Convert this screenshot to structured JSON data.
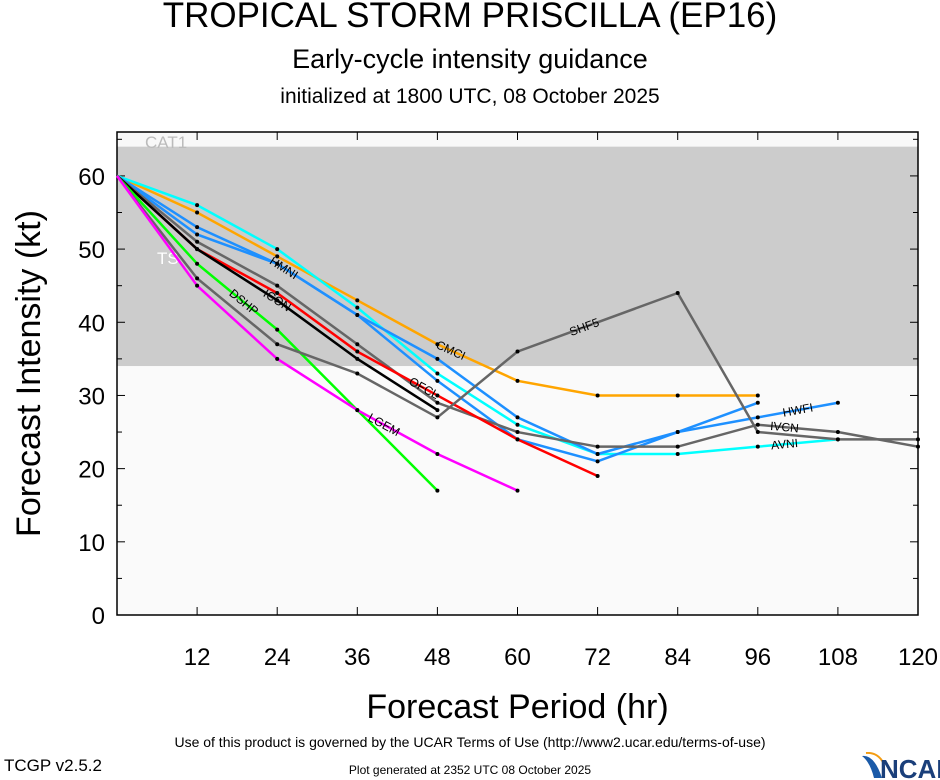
{
  "header": {
    "title": "TROPICAL STORM PRISCILLA (EP16)",
    "subtitle": "Early-cycle intensity guidance",
    "init": "initialized at 1800 UTC, 08 October 2025"
  },
  "footer": {
    "terms": "Use of this product is governed by the UCAR Terms of Use (http://www2.ucar.edu/terms-of-use)",
    "generated": "Plot generated at 2352 UTC   08 October 2025",
    "version": "TCGP v2.5.2",
    "logo": "NCAR"
  },
  "chart_data": {
    "type": "line",
    "xlabel": "Forecast Period (hr)",
    "ylabel": "Forecast Intensity (kt)",
    "xlim": [
      0,
      120
    ],
    "ylim": [
      0,
      66
    ],
    "xticks": [
      12,
      24,
      36,
      48,
      60,
      72,
      84,
      96,
      108,
      120
    ],
    "yticks": [
      0,
      10,
      20,
      30,
      40,
      50,
      60
    ],
    "bands": [
      {
        "label": "CAT1",
        "from": 64,
        "to": 66,
        "color": "#f8f8f8"
      },
      {
        "label": "TS",
        "from": 34,
        "to": 64,
        "color": "#cccccc"
      },
      {
        "label": "",
        "from": 0,
        "to": 34,
        "color": "#fafafa"
      }
    ],
    "series": [
      {
        "name": "CMCI",
        "color": "#ffa500",
        "x": [
          0,
          12,
          24,
          36,
          48,
          60,
          72,
          84,
          96
        ],
        "y": [
          60,
          55,
          49,
          43,
          37,
          32,
          30,
          30,
          30
        ],
        "label_x": 50
      },
      {
        "name": "AVNI",
        "color": "#00ffff",
        "x": [
          0,
          12,
          24,
          36,
          48,
          60,
          72,
          84,
          96,
          108
        ],
        "y": [
          60,
          56,
          50,
          42,
          33,
          26,
          22,
          22,
          23,
          24
        ],
        "label_x": 100
      },
      {
        "name": "HWFI",
        "color": "#1e90ff",
        "x": [
          0,
          12,
          24,
          36,
          48,
          60,
          72,
          84,
          96,
          108
        ],
        "y": [
          60,
          52,
          48,
          41,
          35,
          27,
          22,
          25,
          27,
          29
        ],
        "label_x": 102
      },
      {
        "name": "HMNI",
        "color": "#1e90ff",
        "x": [
          0,
          12,
          24,
          36,
          48,
          60,
          72,
          84,
          96
        ],
        "y": [
          60,
          53,
          48,
          41,
          32,
          24,
          21,
          25,
          29
        ],
        "label_x": 25
      },
      {
        "name": "IVCN",
        "color": "#666666",
        "x": [
          0,
          12,
          24,
          36,
          48,
          60,
          72,
          84,
          96,
          108,
          120
        ],
        "y": [
          60,
          51,
          45,
          37,
          29,
          25,
          23,
          23,
          26,
          25,
          23
        ],
        "label_x": 100
      },
      {
        "name": "OFCL",
        "color": "#ff0000",
        "x": [
          0,
          12,
          24,
          36,
          48,
          60,
          72
        ],
        "y": [
          60,
          50,
          44,
          36,
          30,
          24,
          19
        ],
        "label_x": 46
      },
      {
        "name": "ICON",
        "color": "#000000",
        "x": [
          0,
          12,
          24,
          36,
          48
        ],
        "y": [
          60,
          50,
          43,
          35,
          28
        ],
        "label_x": 24
      },
      {
        "name": "DSHP",
        "color": "#00ff00",
        "x": [
          0,
          12,
          24,
          36,
          48
        ],
        "y": [
          60,
          48,
          39,
          28,
          17
        ],
        "label_x": 19
      },
      {
        "name": "SHF5",
        "color": "#666666",
        "x": [
          0,
          12,
          24,
          36,
          48,
          60,
          84,
          96,
          108,
          120
        ],
        "y": [
          60,
          46,
          37,
          33,
          27,
          36,
          44,
          25,
          24,
          24
        ],
        "label_x": 70
      },
      {
        "name": "LGEM",
        "color": "#ff00ff",
        "x": [
          0,
          12,
          24,
          36,
          48,
          60
        ],
        "y": [
          60,
          45,
          35,
          28,
          22,
          17
        ],
        "label_x": 40
      }
    ]
  }
}
